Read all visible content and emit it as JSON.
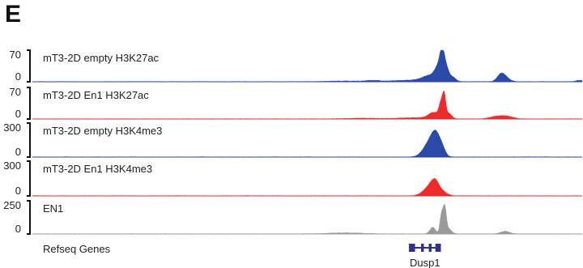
{
  "panel_letter": "E",
  "colors": {
    "blue": "#2b4aa8",
    "red": "#ee2b2b",
    "gray": "#9a9a9a",
    "axis": "#111111",
    "gene": "#2e3192"
  },
  "chart_data": {
    "type": "area",
    "title": "",
    "x_domain": [
      0,
      100
    ],
    "tracks": [
      {
        "name": "mT3-2D empty H3K27ac",
        "color_key": "blue",
        "ylim": [
          0,
          70
        ],
        "yticks": [
          "70",
          "0"
        ],
        "peaks": [
          {
            "x": 57,
            "h": 1.5,
            "w": 3.0
          },
          {
            "x": 62,
            "h": 2.5,
            "w": 1.2
          },
          {
            "x": 68,
            "h": 3.0,
            "w": 2.5
          },
          {
            "x": 72.5,
            "h": 14,
            "w": 1.5
          },
          {
            "x": 73.8,
            "h": 24,
            "w": 0.6
          },
          {
            "x": 74.5,
            "h": 50,
            "w": 0.4
          },
          {
            "x": 75.2,
            "h": 30,
            "w": 0.5
          },
          {
            "x": 76.4,
            "h": 10,
            "w": 0.6
          },
          {
            "x": 85.2,
            "h": 14,
            "w": 0.7
          },
          {
            "x": 86.0,
            "h": 8,
            "w": 0.8
          },
          {
            "x": 99.5,
            "h": 3,
            "w": 0.6
          }
        ]
      },
      {
        "name": "mT3-2D En1 H3K27ac",
        "color_key": "red",
        "ylim": [
          0,
          70
        ],
        "yticks": [
          "70",
          "0"
        ],
        "peaks": [
          {
            "x": 60,
            "h": 1.5,
            "w": 3.0
          },
          {
            "x": 69,
            "h": 2.5,
            "w": 2.5
          },
          {
            "x": 73,
            "h": 14,
            "w": 1.0
          },
          {
            "x": 74.3,
            "h": 30,
            "w": 0.35
          },
          {
            "x": 74.9,
            "h": 50,
            "w": 0.3
          },
          {
            "x": 75.8,
            "h": 12,
            "w": 0.5
          },
          {
            "x": 84.5,
            "h": 6,
            "w": 1.2
          },
          {
            "x": 86.5,
            "h": 5,
            "w": 1.0
          }
        ]
      },
      {
        "name": "mT3-2D empty H3K4me3",
        "color_key": "blue",
        "ylim": [
          0,
          300
        ],
        "yticks": [
          "300",
          "0"
        ],
        "peaks": [
          {
            "x": 72.5,
            "h": 150,
            "w": 1.2
          },
          {
            "x": 73.4,
            "h": 110,
            "w": 0.7
          },
          {
            "x": 74.5,
            "h": 60,
            "w": 0.6
          }
        ]
      },
      {
        "name": "mT3-2D En1 H3K4me3",
        "color_key": "red",
        "ylim": [
          0,
          300
        ],
        "yticks": [
          "300",
          "0"
        ],
        "peaks": [
          {
            "x": 72.5,
            "h": 90,
            "w": 1.2
          },
          {
            "x": 73.3,
            "h": 70,
            "w": 0.7
          },
          {
            "x": 74.8,
            "h": 22,
            "w": 0.8
          }
        ]
      },
      {
        "name": "EN1",
        "color_key": "gray",
        "ylim": [
          0,
          250
        ],
        "yticks": [
          "250",
          "0"
        ],
        "peaks": [
          {
            "x": 57,
            "h": 8,
            "w": 3.0
          },
          {
            "x": 72.8,
            "h": 50,
            "w": 0.5
          },
          {
            "x": 74.4,
            "h": 140,
            "w": 0.28
          },
          {
            "x": 75.0,
            "h": 200,
            "w": 0.3
          },
          {
            "x": 75.8,
            "h": 35,
            "w": 0.5
          },
          {
            "x": 86.0,
            "h": 20,
            "w": 0.8
          }
        ]
      }
    ],
    "genes_track": {
      "label": "Refseq Genes",
      "genes": [
        {
          "name": "Dusp1",
          "start": 68.5,
          "end": 74.3,
          "exons": [
            [
              68.5,
              69.6
            ],
            [
              70.7,
              71.2
            ],
            [
              72.1,
              72.6
            ],
            [
              73.3,
              74.3
            ]
          ]
        }
      ]
    }
  }
}
